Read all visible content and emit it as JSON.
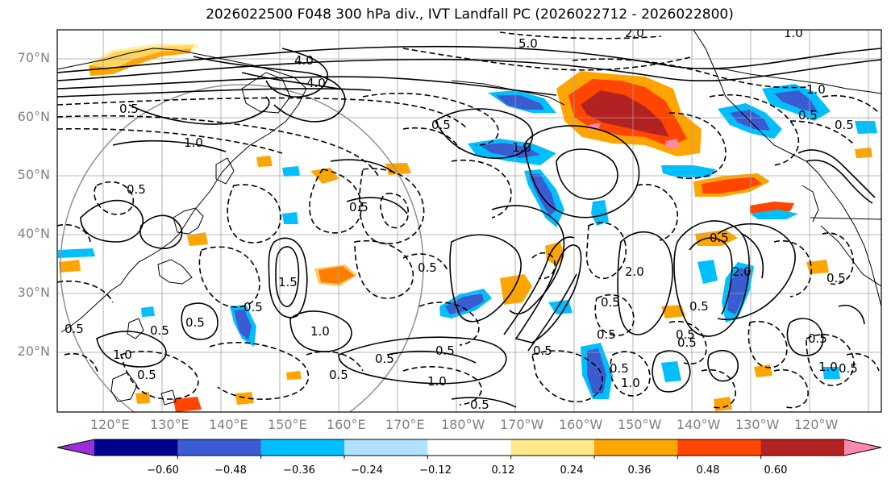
{
  "title": "2026022500 F048 300 hPa div., IVT Landfall PC (2026022712 - 2026022800)",
  "map": {
    "lat_labels": [
      "70°N",
      "60°N",
      "50°N",
      "40°N",
      "30°N",
      "20°N"
    ],
    "lon_labels": [
      "120°E",
      "130°E",
      "140°E",
      "150°E",
      "160°E",
      "170°E",
      "180°W",
      "170°W",
      "160°W",
      "150°W",
      "140°W",
      "130°W",
      "120°W"
    ],
    "contour_labels": [
      "5.0",
      "2.0",
      "1.0",
      "4.0",
      "4.0",
      "1.0",
      "0.5",
      "0.5",
      "1.0",
      "0.5",
      "0.5",
      "1.5",
      "0.5",
      "0.5",
      "0.5",
      "1.0",
      "0.5",
      "0.5",
      "1.0",
      "0.5",
      "0.5",
      "1.0",
      "0.5",
      "0.5",
      "0.5",
      "0.5",
      "2.0",
      "0.5",
      "0.5",
      "2.0",
      "0.5",
      "0.5",
      "0.5",
      "1.0",
      "0.5",
      "0.5",
      "0.5",
      "0.5",
      "0.5",
      "1.0",
      "0.5",
      "1.0",
      "0.5"
    ]
  },
  "colorbar": {
    "tick_labels": [
      "−0.60",
      "−0.48",
      "−0.36",
      "−0.24",
      "−0.12",
      "0.12",
      "0.24",
      "0.36",
      "0.48",
      "0.60"
    ],
    "colors": [
      "#9b30d8",
      "#00008b",
      "#3a5cd0",
      "#00bfff",
      "#b0e2ff",
      "#ffffff",
      "#ffe98a",
      "#ffa500",
      "#ff4500",
      "#b22222",
      "#ff88aa"
    ]
  },
  "colors": {
    "blue_dark": "#3a5cd0",
    "blue": "#00bfff",
    "blue_light": "#b0e2ff",
    "yellow": "#ffe98a",
    "orange": "#ffa500",
    "red": "#ff4500",
    "darkred": "#b22222",
    "pink": "#ff88aa"
  }
}
